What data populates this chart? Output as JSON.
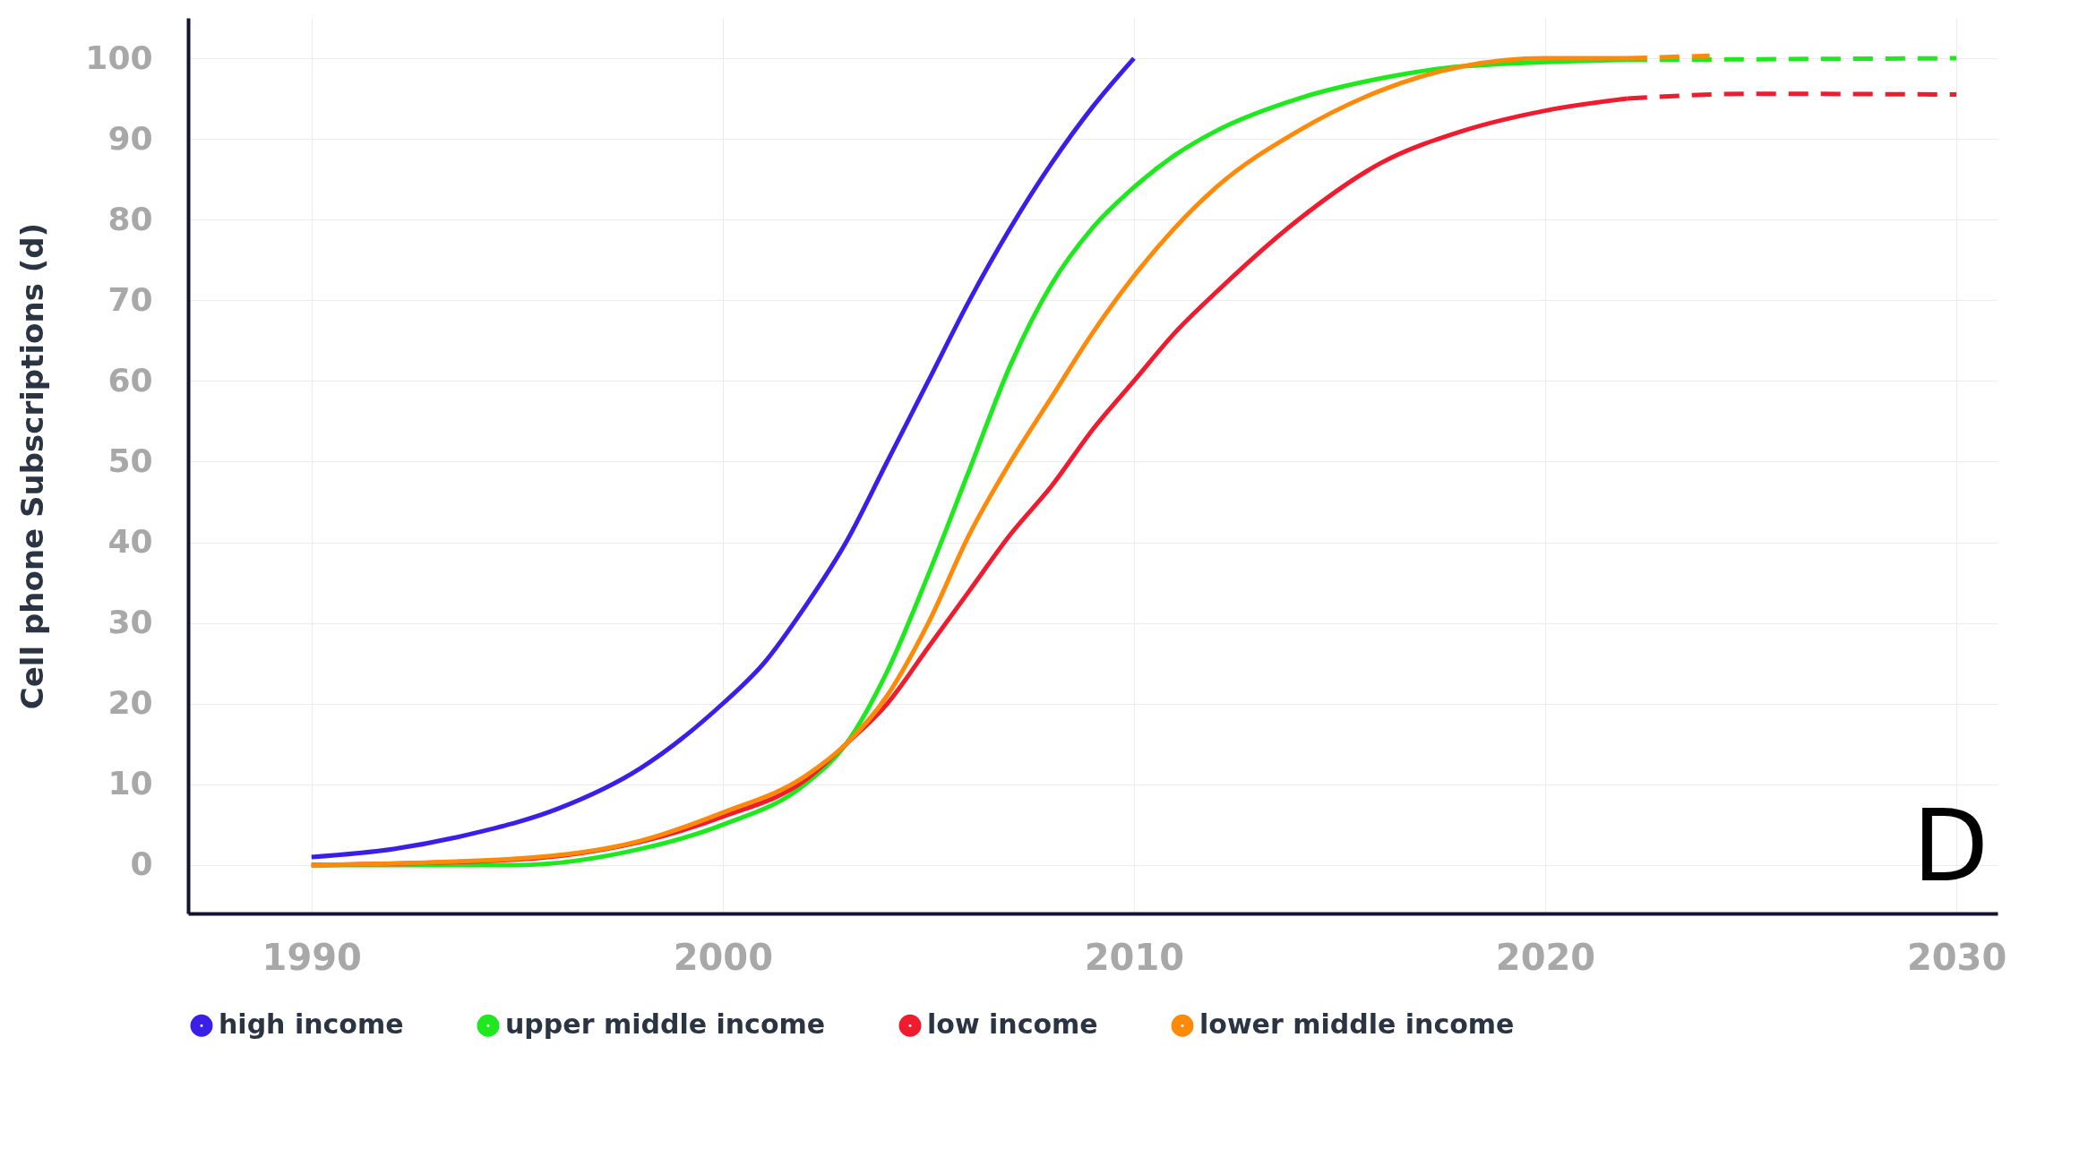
{
  "chart_data": {
    "type": "line",
    "ylabel": "Cell phone Subscriptions (d)",
    "xlim": [
      1987,
      2031
    ],
    "ylim": [
      -6,
      105
    ],
    "xticks": [
      1990,
      2000,
      2010,
      2020,
      2030
    ],
    "yticks": [
      0,
      10,
      20,
      30,
      40,
      50,
      60,
      70,
      80,
      90,
      100
    ],
    "grid": true,
    "legend": "bottom",
    "marker": "none",
    "annotations": [
      "D"
    ],
    "series": [
      {
        "name": "high income",
        "color": "#3a1fe8",
        "line_style": "solid",
        "x": [
          1990,
          1992,
          1994,
          1996,
          1998,
          2000,
          2001,
          2002,
          2003,
          2004,
          2005,
          2006,
          2007,
          2008,
          2009,
          2010
        ],
        "values": [
          1,
          2,
          4,
          7,
          12,
          20,
          25,
          32,
          40,
          50,
          60,
          70,
          79,
          87,
          94,
          100
        ]
      },
      {
        "name": "upper middle income",
        "color": "#1ee81e",
        "line_style": "solid",
        "x": [
          1990,
          1995,
          1998,
          2000,
          2002,
          2003,
          2004,
          2005,
          2006,
          2007,
          2008,
          2009,
          2010,
          2011,
          2012,
          2014,
          2016,
          2018,
          2022
        ],
        "values": [
          0,
          0,
          2,
          5,
          10,
          15,
          24,
          36,
          49,
          62,
          72,
          79,
          84,
          88,
          91,
          95,
          97.5,
          99,
          99.8
        ]
      },
      {
        "name": "low income",
        "color": "#ee1c2e",
        "line_style": "solid",
        "x": [
          1990,
          1995,
          2000,
          2002,
          2003,
          2004,
          2005,
          2006,
          2007,
          2008,
          2009,
          2010,
          2011,
          2012,
          2014,
          2016,
          2018,
          2020,
          2022
        ],
        "values": [
          0,
          0.7,
          6,
          10.5,
          15,
          20,
          27,
          34,
          41,
          47,
          54,
          60,
          66,
          71,
          80,
          87,
          91,
          93.5,
          95
        ]
      },
      {
        "name": "lower middle income",
        "color": "#ff8a0a",
        "line_style": "solid",
        "x": [
          1990,
          1995,
          1998,
          2000,
          2002,
          2003,
          2004,
          2005,
          2006,
          2007,
          2008,
          2009,
          2010,
          2012,
          2014,
          2016,
          2018,
          2020,
          2022
        ],
        "values": [
          0,
          0.8,
          3,
          6.5,
          11,
          15,
          21,
          30,
          41,
          50,
          58,
          66,
          73,
          84,
          91,
          96,
          99,
          100,
          100
        ]
      },
      {
        "color": "#1ee81e",
        "line_style": "dashed",
        "x": [
          2022,
          2030
        ],
        "values": [
          99.8,
          100
        ]
      },
      {
        "color": "#ee1c2e",
        "line_style": "dashed",
        "x": [
          2022,
          2025,
          2030
        ],
        "values": [
          95,
          95.6,
          95.5
        ]
      },
      {
        "color": "#ff8a0a",
        "line_style": "dashed",
        "x": [
          2022,
          2024
        ],
        "values": [
          100,
          100.3
        ]
      }
    ]
  }
}
